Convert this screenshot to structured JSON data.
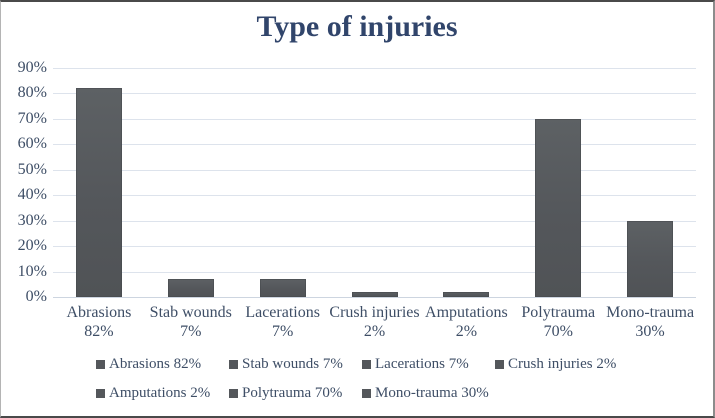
{
  "chart_data": {
    "type": "bar",
    "title": "Type of injuries",
    "categories": [
      "Abrasions",
      "Stab wounds",
      "Lacerations",
      "Crush injuries",
      "Amputations",
      "Polytrauma",
      "Mono-trauma"
    ],
    "values": [
      82,
      7,
      7,
      2,
      2,
      70,
      30
    ],
    "value_labels": [
      "82%",
      "7%",
      "7%",
      "2%",
      "2%",
      "70%",
      "30%"
    ],
    "xlabel": "",
    "ylabel": "",
    "ylim": [
      0,
      90
    ],
    "y_tick_step": 10,
    "y_ticks": [
      "90%",
      "80%",
      "70%",
      "60%",
      "50%",
      "40%",
      "30%",
      "20%",
      "10%",
      "0%"
    ],
    "grid": true,
    "legend_position": "bottom",
    "legend": {
      "items": [
        "Abrasions 82%",
        "Stab wounds 7%",
        "Lacerations 7%",
        "Crush injuries 2%",
        "Amputations 2%",
        "Polytrauma 70%",
        "Mono-trauma 30%"
      ]
    },
    "colors": {
      "bar_fill": "#55585b",
      "title_text": "#31456b",
      "axis_text": "#3e4e66",
      "gridline": "#dde3ec",
      "legend_swatch": "#54575b",
      "frame_border": "#4a4a4a"
    }
  }
}
